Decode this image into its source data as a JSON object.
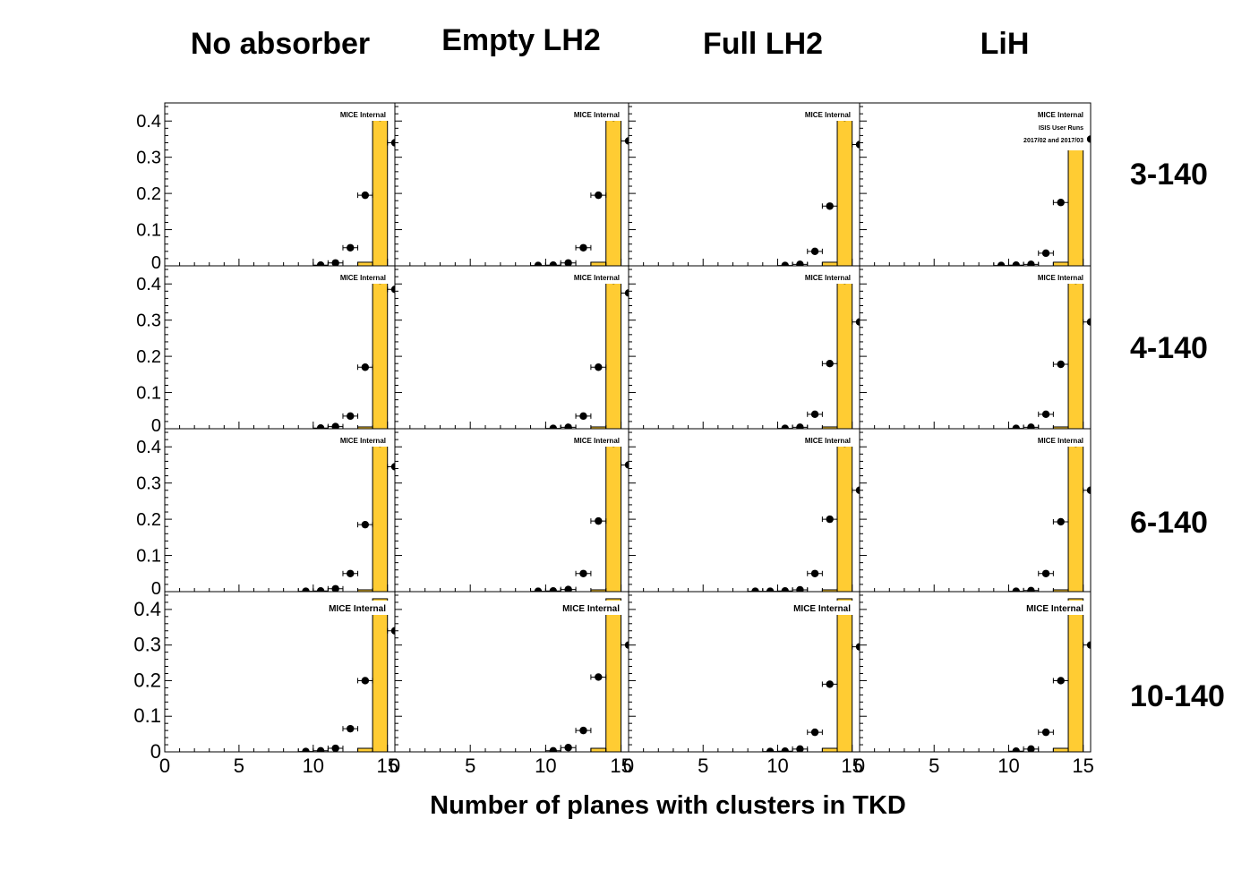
{
  "columns": [
    "No absorber",
    "Empty LH2",
    "Full LH2",
    "LiH"
  ],
  "rows": [
    "3-140",
    "4-140",
    "6-140",
    "10-140"
  ],
  "x_axis_title": "Number of planes with clusters in TKD",
  "badge_text": "MICE Internal",
  "badge_extra": [
    "ISIS User Runs",
    "2017/02 and 2017/03"
  ],
  "colors": {
    "histogram_fill": "#ffcc33",
    "points": "#000000",
    "frame": "#000000"
  },
  "chart_data": {
    "type": "scatter",
    "layout": "4x4 panel grid, shared axes",
    "xlim": [
      0,
      15.5
    ],
    "ylim": [
      0,
      0.45
    ],
    "xticks": [
      "0",
      "5",
      "10",
      "15"
    ],
    "yticks": [
      "0",
      "0.1",
      "0.2",
      "0.3",
      "0.4"
    ],
    "x_tick_overlap_labels": [
      "15",
      "0"
    ],
    "panels": [
      {
        "row": "3-140",
        "col": "No absorber",
        "hist": [
          0,
          0,
          0,
          0,
          0,
          0,
          0,
          0,
          0,
          0,
          0,
          0,
          0,
          0.01,
          0.43
        ],
        "points_x": [
          10,
          11,
          12,
          13,
          14,
          15
        ],
        "points_y": [
          0.002,
          0.008,
          0.05,
          0.195,
          0.41,
          0.34
        ]
      },
      {
        "row": "3-140",
        "col": "Empty LH2",
        "hist": [
          0,
          0,
          0,
          0,
          0,
          0,
          0,
          0,
          0,
          0,
          0,
          0,
          0,
          0.01,
          0.43
        ],
        "points_x": [
          9,
          10,
          11,
          12,
          13,
          14,
          15
        ],
        "points_y": [
          0.001,
          0.002,
          0.008,
          0.05,
          0.195,
          0.41,
          0.345
        ]
      },
      {
        "row": "3-140",
        "col": "Full LH2",
        "hist": [
          0,
          0,
          0,
          0,
          0,
          0,
          0,
          0,
          0,
          0,
          0,
          0,
          0,
          0.01,
          0.43
        ],
        "points_x": [
          10,
          11,
          12,
          13,
          14,
          15
        ],
        "points_y": [
          0.001,
          0.004,
          0.04,
          0.165,
          0.41,
          0.335
        ]
      },
      {
        "row": "3-140",
        "col": "LiH",
        "hist": [
          0,
          0,
          0,
          0,
          0,
          0,
          0,
          0,
          0,
          0,
          0,
          0,
          0,
          0.01,
          0.43
        ],
        "points_x": [
          9,
          10,
          11,
          12,
          13,
          14,
          15
        ],
        "points_y": [
          0.001,
          0.002,
          0.004,
          0.035,
          0.175,
          0.41,
          0.35
        ]
      },
      {
        "row": "4-140",
        "col": "No absorber",
        "hist": [
          0,
          0,
          0,
          0,
          0,
          0,
          0,
          0,
          0,
          0,
          0,
          0,
          0,
          0.005,
          0.43
        ],
        "points_x": [
          10,
          11,
          12,
          13,
          14,
          15
        ],
        "points_y": [
          0.002,
          0.006,
          0.035,
          0.17,
          0.41,
          0.385
        ]
      },
      {
        "row": "4-140",
        "col": "Empty LH2",
        "hist": [
          0,
          0,
          0,
          0,
          0,
          0,
          0,
          0,
          0,
          0,
          0,
          0,
          0,
          0.005,
          0.43
        ],
        "points_x": [
          10,
          11,
          12,
          13,
          14,
          15
        ],
        "points_y": [
          0.001,
          0.004,
          0.035,
          0.17,
          0.41,
          0.375
        ]
      },
      {
        "row": "4-140",
        "col": "Full LH2",
        "hist": [
          0,
          0,
          0,
          0,
          0,
          0,
          0,
          0,
          0,
          0,
          0,
          0,
          0,
          0.005,
          0.43
        ],
        "points_x": [
          10,
          11,
          12,
          13,
          14,
          15
        ],
        "points_y": [
          0.001,
          0.004,
          0.04,
          0.18,
          0.41,
          0.295
        ]
      },
      {
        "row": "4-140",
        "col": "LiH",
        "hist": [
          0,
          0,
          0,
          0,
          0,
          0,
          0,
          0,
          0,
          0,
          0,
          0,
          0,
          0.005,
          0.43
        ],
        "points_x": [
          10,
          11,
          12,
          13,
          14,
          15
        ],
        "points_y": [
          0.001,
          0.004,
          0.04,
          0.178,
          0.41,
          0.295
        ]
      },
      {
        "row": "6-140",
        "col": "No absorber",
        "hist": [
          0,
          0,
          0,
          0,
          0,
          0,
          0,
          0,
          0,
          0,
          0,
          0,
          0,
          0.005,
          0.43
        ],
        "points_x": [
          9,
          10,
          11,
          12,
          13,
          14,
          15
        ],
        "points_y": [
          0.001,
          0.002,
          0.008,
          0.05,
          0.185,
          0.41,
          0.345
        ]
      },
      {
        "row": "6-140",
        "col": "Empty LH2",
        "hist": [
          0,
          0,
          0,
          0,
          0,
          0,
          0,
          0,
          0,
          0,
          0,
          0,
          0,
          0.005,
          0.43
        ],
        "points_x": [
          9,
          10,
          11,
          12,
          13,
          14,
          15
        ],
        "points_y": [
          0.001,
          0.002,
          0.006,
          0.05,
          0.195,
          0.41,
          0.35
        ]
      },
      {
        "row": "6-140",
        "col": "Full LH2",
        "hist": [
          0,
          0,
          0,
          0,
          0,
          0,
          0,
          0,
          0,
          0,
          0,
          0,
          0,
          0.005,
          0.43
        ],
        "points_x": [
          8,
          9,
          10,
          11,
          12,
          13,
          14,
          15
        ],
        "points_y": [
          0.001,
          0.001,
          0.002,
          0.005,
          0.05,
          0.2,
          0.41,
          0.28
        ]
      },
      {
        "row": "6-140",
        "col": "LiH",
        "hist": [
          0,
          0,
          0,
          0,
          0,
          0,
          0,
          0,
          0,
          0,
          0,
          0,
          0,
          0.005,
          0.43
        ],
        "points_x": [
          10,
          11,
          12,
          13,
          14,
          15
        ],
        "points_y": [
          0.001,
          0.003,
          0.05,
          0.193,
          0.41,
          0.28
        ]
      },
      {
        "row": "10-140",
        "col": "No absorber",
        "hist": [
          0,
          0,
          0,
          0,
          0,
          0,
          0,
          0,
          0,
          0,
          0,
          0,
          0,
          0.01,
          0.43
        ],
        "points_x": [
          9,
          10,
          11,
          12,
          13,
          15
        ],
        "points_y": [
          0.001,
          0.003,
          0.01,
          0.065,
          0.2,
          0.34
        ]
      },
      {
        "row": "10-140",
        "col": "Empty LH2",
        "hist": [
          0,
          0,
          0,
          0,
          0,
          0,
          0,
          0,
          0,
          0,
          0,
          0,
          0,
          0.01,
          0.43
        ],
        "points_x": [
          10,
          11,
          12,
          13,
          15
        ],
        "points_y": [
          0.003,
          0.012,
          0.06,
          0.21,
          0.3
        ]
      },
      {
        "row": "10-140",
        "col": "Full LH2",
        "hist": [
          0,
          0,
          0,
          0,
          0,
          0,
          0,
          0,
          0,
          0,
          0,
          0,
          0,
          0.01,
          0.43
        ],
        "points_x": [
          9,
          10,
          11,
          12,
          13,
          15
        ],
        "points_y": [
          0.001,
          0.002,
          0.008,
          0.055,
          0.19,
          0.295
        ]
      },
      {
        "row": "10-140",
        "col": "LiH",
        "hist": [
          0,
          0,
          0,
          0,
          0,
          0,
          0,
          0,
          0,
          0,
          0,
          0,
          0,
          0.01,
          0.43
        ],
        "points_x": [
          10,
          11,
          12,
          13,
          15
        ],
        "points_y": [
          0.002,
          0.008,
          0.055,
          0.2,
          0.3
        ]
      }
    ]
  }
}
